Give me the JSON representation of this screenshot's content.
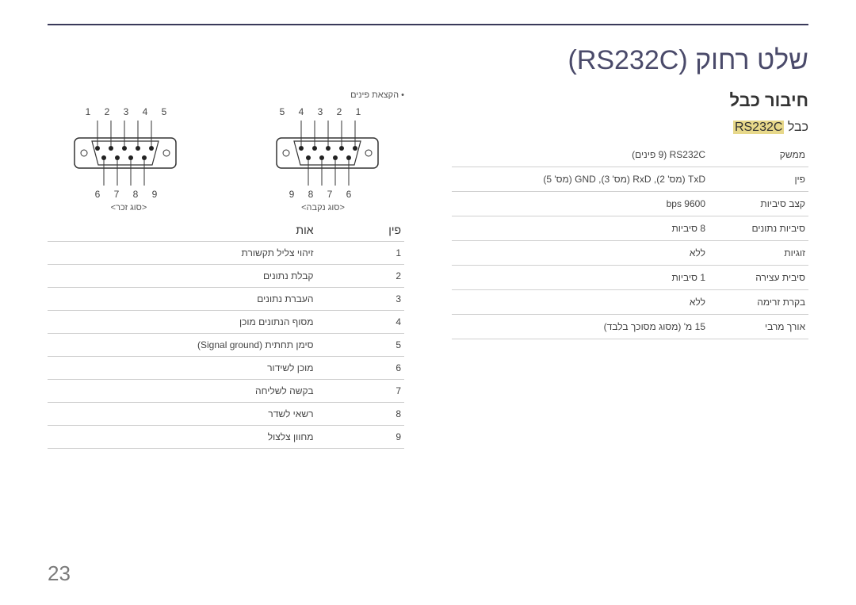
{
  "page_number": "23",
  "main_title": "שלט רחוק (RS232C)",
  "section_title": "חיבור כבל",
  "cable_label_prefix": "כבל",
  "cable_label_model": "RS232C",
  "spec_rows": [
    {
      "label": "ממשק",
      "value": "RS232C (9 פינים)"
    },
    {
      "label": "פין",
      "value": "TxD (מס' 2), RxD (מס' 3), GND (מס' 5)"
    },
    {
      "label": "קצב סיביות",
      "value": "9600 bps"
    },
    {
      "label": "סיביות נתונים",
      "value": "8 סיביות"
    },
    {
      "label": "זוגיות",
      "value": "ללא"
    },
    {
      "label": "סיבית עצירה",
      "value": "1 סיביות"
    },
    {
      "label": "בקרת זרימה",
      "value": "ללא"
    },
    {
      "label": "אורך מרבי",
      "value": "15 מ' (מסוג מסוכך בלבד)"
    }
  ],
  "note_bullet": "הקצאת פינים",
  "connectors": [
    {
      "top_nums": "1 2 3 4 5",
      "bottom_nums": "6 7 8 9",
      "label": "<סוג זכר>",
      "mirror": false
    },
    {
      "top_nums": "5 4 3 2 1",
      "bottom_nums": "9 8 7 6",
      "label": "<סוג נקבה>",
      "mirror": true
    }
  ],
  "pin_table": {
    "head_pin": "פין",
    "head_signal": "אות",
    "rows": [
      {
        "pin": "1",
        "signal": "זיהוי צליל תקשורת"
      },
      {
        "pin": "2",
        "signal": "קבלת נתונים"
      },
      {
        "pin": "3",
        "signal": "העברת נתונים"
      },
      {
        "pin": "4",
        "signal": "מסוף הנתונים מוכן"
      },
      {
        "pin": "5",
        "signal": "סימן תחתית (Signal ground)"
      },
      {
        "pin": "6",
        "signal": "מוכן לשידור"
      },
      {
        "pin": "7",
        "signal": "בקשה לשליחה"
      },
      {
        "pin": "8",
        "signal": "רשאי לשדר"
      },
      {
        "pin": "9",
        "signal": "מחוון צלצול"
      }
    ]
  },
  "colors": {
    "rule": "#3a3a5a",
    "highlight_bg": "#e7d88a",
    "border": "#d0d0d0",
    "text": "#444444"
  },
  "diagram": {
    "shell_stroke": "#333333",
    "pin_fill": "#222222",
    "line_stroke": "#333333"
  }
}
